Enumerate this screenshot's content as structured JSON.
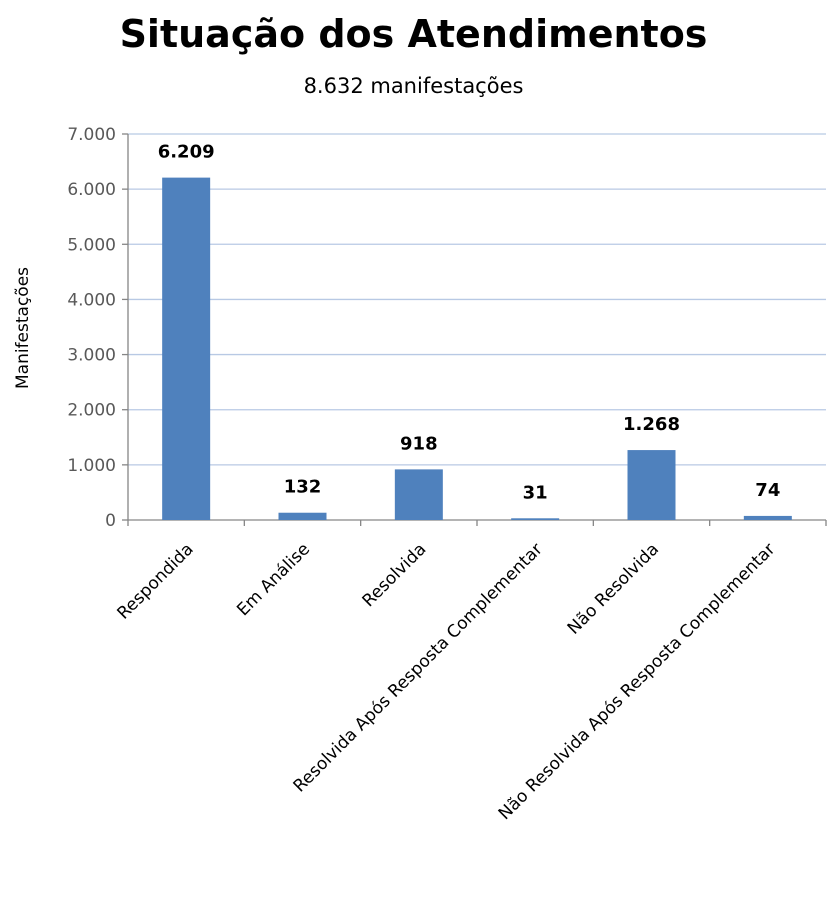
{
  "chart_data": {
    "type": "bar",
    "title": "Situação dos Atendimentos",
    "subtitle": "8.632 manifestações",
    "xlabel": "",
    "ylabel": "Manifestações",
    "categories": [
      "Respondida",
      "Em Análise",
      "Resolvida",
      "Resolvida Após Resposta Complementar",
      "Não Resolvida",
      "Não Resolvida Após Resposta Complementar"
    ],
    "values": [
      6209,
      132,
      918,
      31,
      1268,
      74
    ],
    "data_labels": [
      "6.209",
      "132",
      "918",
      "31",
      "1.268",
      "74"
    ],
    "ylim": [
      0,
      7000
    ],
    "yticks": [
      0,
      1000,
      2000,
      3000,
      4000,
      5000,
      6000,
      7000
    ],
    "ytick_labels": [
      "0",
      "1.000",
      "2.000",
      "3.000",
      "4.000",
      "5.000",
      "6.000",
      "7.000"
    ],
    "grid": true,
    "legend": "none",
    "colors": {
      "bar": "#4f81bd",
      "grid": "#b8c9e4",
      "axis": "#868686"
    }
  }
}
